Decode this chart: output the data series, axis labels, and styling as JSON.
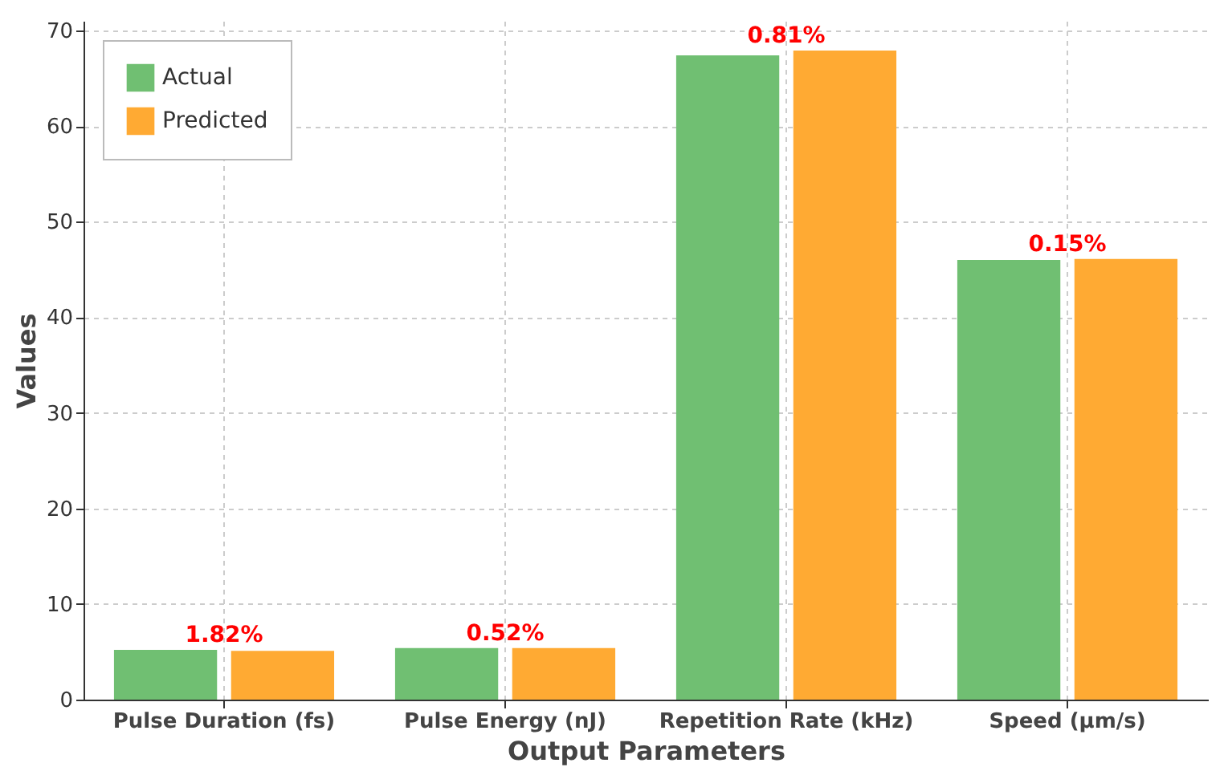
{
  "chart_data": {
    "type": "bar",
    "xlabel": "Output Parameters",
    "ylabel": "Values",
    "categories": [
      "Pulse Duration (fs)",
      "Pulse Energy (nJ)",
      "Repetition Rate (kHz)",
      "Speed (µm/s)"
    ],
    "series": [
      {
        "name": "Actual",
        "color": "#70bf72",
        "values": [
          5.2,
          5.4,
          67.4,
          46.0
        ]
      },
      {
        "name": "Predicted",
        "color": "#ffaa33",
        "values": [
          5.1,
          5.4,
          67.9,
          46.1
        ]
      }
    ],
    "ylim": [
      0,
      71
    ],
    "yticks": [
      0,
      10,
      20,
      30,
      40,
      50,
      60,
      70
    ],
    "grid": true,
    "legend": "top left",
    "annotations": [
      {
        "text": "1.82%",
        "x": "Pulse Duration (fs)",
        "y": 5.2
      },
      {
        "text": "0.52%",
        "x": "Pulse Energy (nJ)",
        "y": 5.4
      },
      {
        "text": "0.81%",
        "x": "Repetition Rate (kHz)",
        "y": 67.9
      },
      {
        "text": "0.15%",
        "x": "Speed (µm/s)",
        "y": 46.1
      }
    ]
  }
}
